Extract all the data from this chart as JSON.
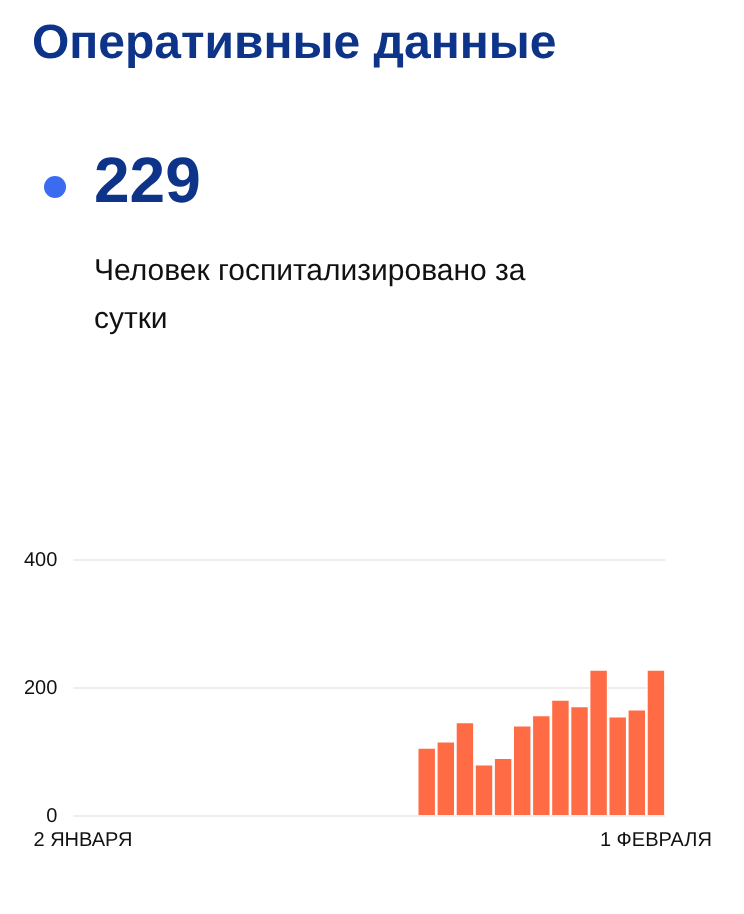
{
  "chart_data": {
    "type": "bar",
    "title": "Оперативные данные",
    "annotations": [
      "229",
      "Человек госпитализировано за сутки"
    ],
    "categories": [
      "2 ЯНВАРЯ",
      null,
      null,
      null,
      null,
      null,
      null,
      null,
      null,
      null,
      null,
      null,
      null,
      null,
      null,
      null,
      null,
      null,
      null,
      null,
      null,
      null,
      null,
      null,
      null,
      null,
      null,
      null,
      null,
      null,
      "1 ФЕВРАЛЯ"
    ],
    "values": [
      null,
      null,
      null,
      null,
      null,
      null,
      null,
      null,
      null,
      null,
      null,
      null,
      null,
      null,
      null,
      null,
      null,
      null,
      107,
      117,
      147,
      81,
      91,
      142,
      158,
      182,
      172,
      229,
      156,
      167,
      229
    ],
    "color": "#ff6b45",
    "ylim": [
      0,
      400
    ],
    "yticks": [
      0,
      200,
      400
    ],
    "grid": "y"
  }
}
